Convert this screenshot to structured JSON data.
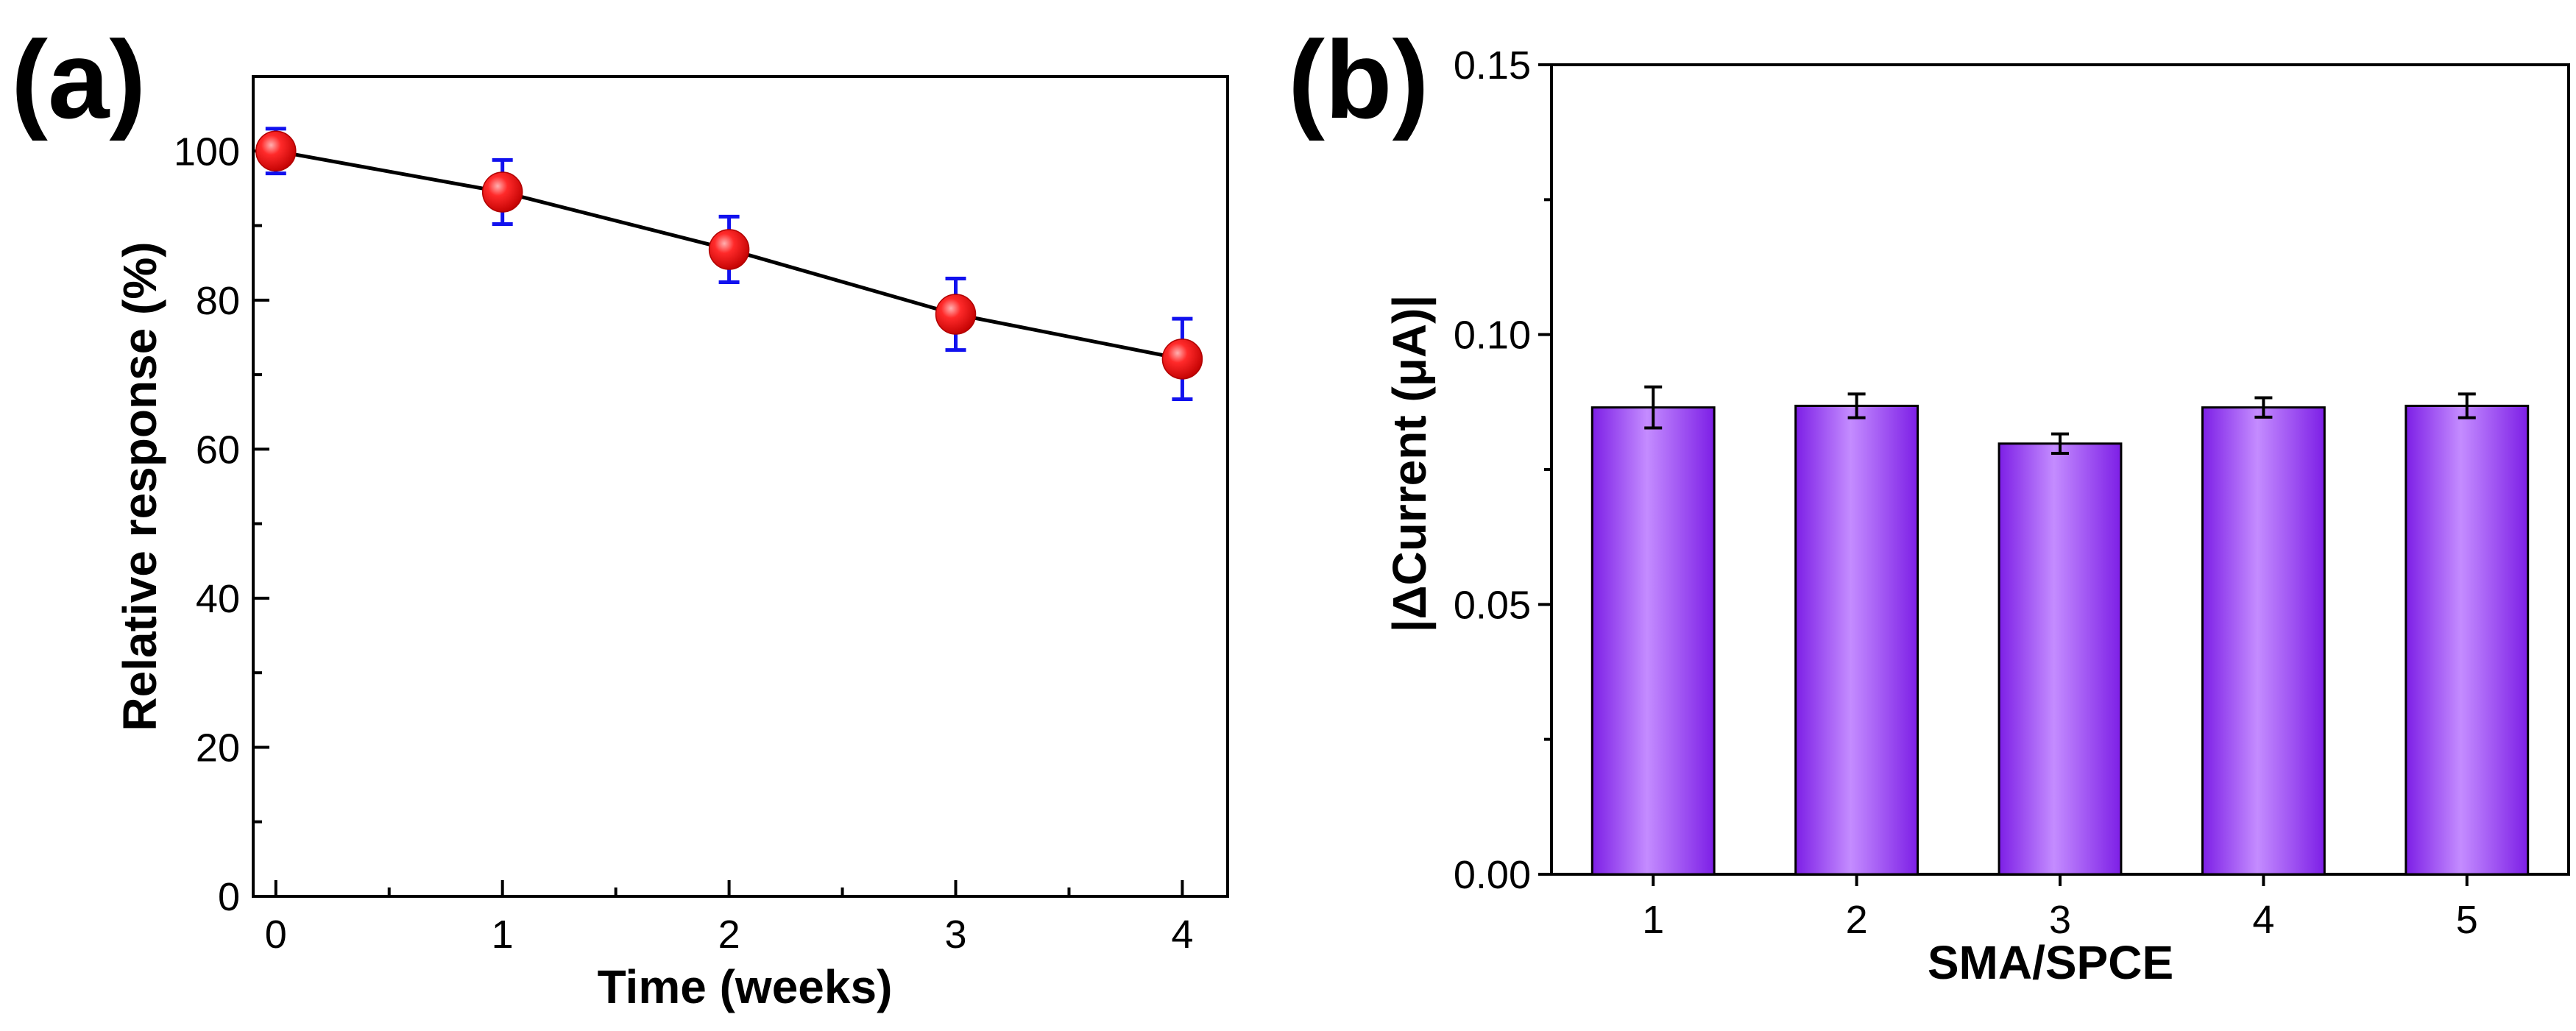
{
  "chart_data": [
    {
      "panel_label": "(a)",
      "type": "line",
      "title": "",
      "xlabel": "Time (weeks)",
      "ylabel": "Relative response (%)",
      "x": [
        0,
        1,
        2,
        3,
        4
      ],
      "y": [
        100,
        94.5,
        86.8,
        78.1,
        72.1
      ],
      "error": [
        3.0,
        4.3,
        4.4,
        4.8,
        5.4
      ],
      "xlim": [
        -0.1,
        4.2
      ],
      "ylim": [
        0,
        110
      ],
      "xticks": [
        "0",
        "1",
        "2",
        "3",
        "4"
      ],
      "yticks": [
        "0",
        "20",
        "40",
        "60",
        "80",
        "100"
      ],
      "ytick_values": [
        0,
        20,
        40,
        60,
        80,
        100
      ],
      "marker_color": "#ee1111",
      "errorbar_color": "#1111ee",
      "line_color": "#000000",
      "grid": false
    },
    {
      "panel_label": "(b)",
      "type": "bar",
      "title": "",
      "xlabel": "SMA/SPCE",
      "ylabel": "|ΔCurrent (μA)|",
      "categories": [
        "1",
        "2",
        "3",
        "4",
        "5"
      ],
      "values": [
        0.0865,
        0.0868,
        0.0798,
        0.0865,
        0.0868
      ],
      "error": [
        0.0038,
        0.0022,
        0.0018,
        0.0018,
        0.0022
      ],
      "ylim": [
        0,
        0.15
      ],
      "yticks": [
        "0.00",
        "0.05",
        "0.10",
        "0.15"
      ],
      "ytick_values": [
        0,
        0.05,
        0.1,
        0.15
      ],
      "bar_color": "#9a3cf2",
      "grid": false
    }
  ]
}
